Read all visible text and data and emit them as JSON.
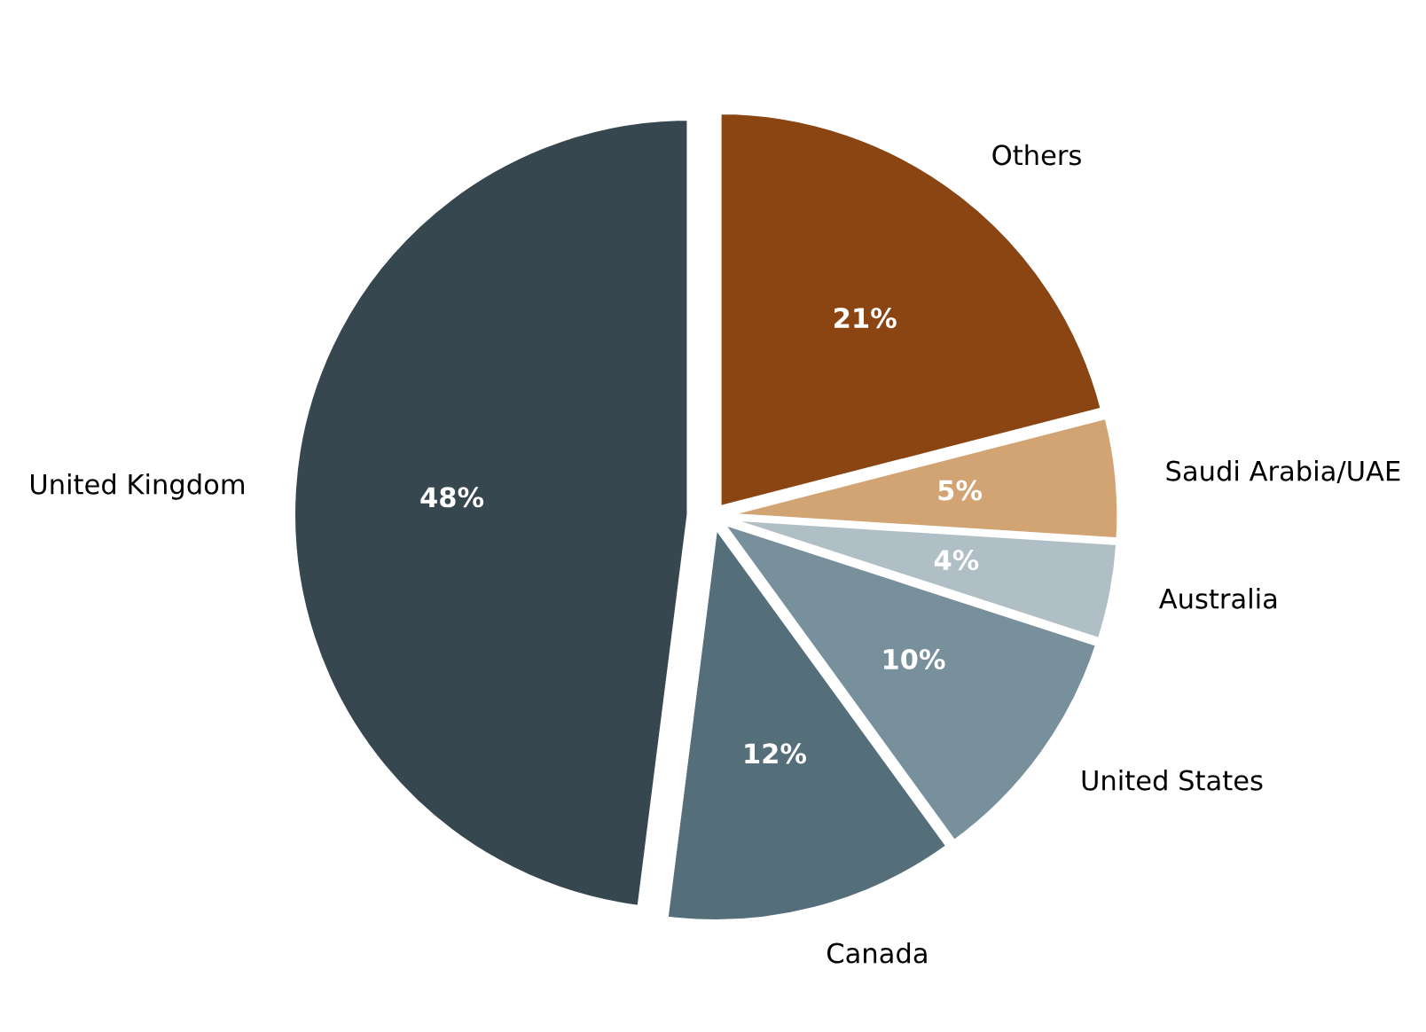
{
  "chart_data": {
    "type": "pie",
    "categories": [
      "Others",
      "Saudi Arabia/UAE",
      "Australia",
      "United States",
      "Canada",
      "United Kingdom"
    ],
    "values": [
      21,
      5,
      4,
      10,
      12,
      48
    ],
    "value_labels": [
      "21%",
      "5%",
      "4%",
      "10%",
      "12%",
      "48%"
    ],
    "colors": [
      "#8b4513",
      "#d2a474",
      "#b0bec5",
      "#78909c",
      "#546e7a",
      "#37474f"
    ]
  }
}
